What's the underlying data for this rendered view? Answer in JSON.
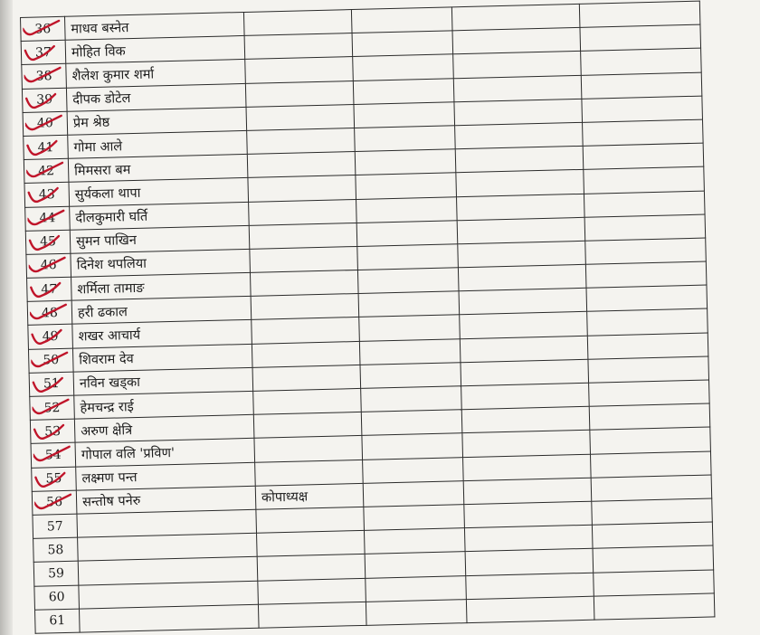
{
  "document": {
    "accent_colors": {
      "ink": "#1c1c1c",
      "check_mark": "#c0152a"
    },
    "rows": [
      {
        "number": "36",
        "name": "माधव बस्नेत",
        "role": "",
        "checked": true
      },
      {
        "number": "37",
        "name": "मोहित विक",
        "role": "",
        "checked": true
      },
      {
        "number": "38",
        "name": "शैलेश कुमार शर्मा",
        "role": "",
        "checked": true
      },
      {
        "number": "39",
        "name": "दीपक डोटेल",
        "role": "",
        "checked": true
      },
      {
        "number": "40",
        "name": "प्रेम श्रेष्ठ",
        "role": "",
        "checked": true
      },
      {
        "number": "41",
        "name": "गोमा आले",
        "role": "",
        "checked": true
      },
      {
        "number": "42",
        "name": "मिमसरा बम",
        "role": "",
        "checked": true
      },
      {
        "number": "43",
        "name": "सुर्यकला थापा",
        "role": "",
        "checked": true
      },
      {
        "number": "44",
        "name": "दीलकुमारी घर्ति",
        "role": "",
        "checked": true
      },
      {
        "number": "45",
        "name": "सुमन पाखिन",
        "role": "",
        "checked": true
      },
      {
        "number": "46",
        "name": "दिनेश थपलिया",
        "role": "",
        "checked": true
      },
      {
        "number": "47",
        "name": "शर्मिला तामाङ",
        "role": "",
        "checked": true
      },
      {
        "number": "48",
        "name": "हरी ढकाल",
        "role": "",
        "checked": true
      },
      {
        "number": "49",
        "name": "शखर आचार्य",
        "role": "",
        "checked": true
      },
      {
        "number": "50",
        "name": "शिवराम देव",
        "role": "",
        "checked": true
      },
      {
        "number": "51",
        "name": "नविन खड्का",
        "role": "",
        "checked": true
      },
      {
        "number": "52",
        "name": "हेमचन्द्र राई",
        "role": "",
        "checked": true
      },
      {
        "number": "53",
        "name": "अरुण क्षेत्रि",
        "role": "",
        "checked": true
      },
      {
        "number": "54",
        "name": "गोपाल वलि 'प्रविण'",
        "role": "",
        "checked": true
      },
      {
        "number": "55",
        "name": "लक्ष्मण पन्त",
        "role": "",
        "checked": true
      },
      {
        "number": "56",
        "name": "सन्तोष पनेरु",
        "role": "कोपाध्यक्ष",
        "checked": true
      },
      {
        "number": "57",
        "name": "",
        "role": "",
        "checked": false
      },
      {
        "number": "58",
        "name": "",
        "role": "",
        "checked": false
      },
      {
        "number": "59",
        "name": "",
        "role": "",
        "checked": false
      },
      {
        "number": "60",
        "name": "",
        "role": "",
        "checked": false
      },
      {
        "number": "61",
        "name": "",
        "role": "",
        "checked": false
      }
    ]
  }
}
